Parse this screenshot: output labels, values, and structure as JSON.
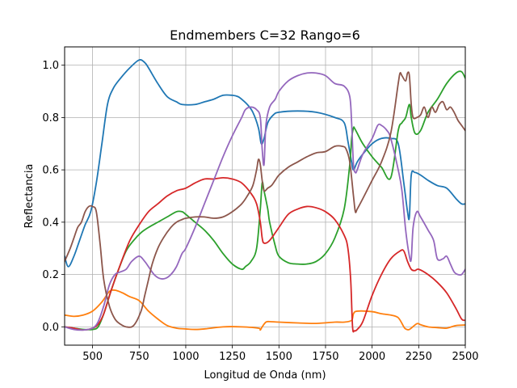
{
  "chart_data": {
    "type": "line",
    "title": "Endmembers C=32 Rango=6",
    "xlabel": "Longitud de Onda (nm)",
    "ylabel": "Reflectancia",
    "xlim": [
      350,
      2500
    ],
    "ylim": [
      -0.07,
      1.07
    ],
    "xticks": [
      500,
      750,
      1000,
      1250,
      1500,
      1750,
      2000,
      2250,
      2500
    ],
    "yticks": [
      0.0,
      0.2,
      0.4,
      0.6,
      0.8,
      1.0
    ],
    "xtick_labels": [
      "500",
      "750",
      "1000",
      "1250",
      "1500",
      "1750",
      "2000",
      "2250",
      "2500"
    ],
    "ytick_labels": [
      "0.0",
      "0.2",
      "0.4",
      "0.6",
      "0.8",
      "1.0"
    ],
    "grid": true,
    "series": [
      {
        "color": "#1f77b4",
        "x": [
          350,
          370,
          400,
          430,
          460,
          490,
          520,
          550,
          580,
          610,
          650,
          700,
          750,
          780,
          800,
          850,
          900,
          950,
          980,
          1050,
          1100,
          1150,
          1200,
          1250,
          1280,
          1300,
          1330,
          1360,
          1390,
          1405,
          1420,
          1440,
          1470,
          1500,
          1600,
          1700,
          1800,
          1850,
          1870,
          1890,
          1900,
          1920,
          1950,
          2000,
          2050,
          2100,
          2140,
          2170,
          2190,
          2200,
          2210,
          2230,
          2260,
          2300,
          2350,
          2400,
          2450,
          2480,
          2500
        ],
        "y": [
          0.27,
          0.23,
          0.27,
          0.33,
          0.39,
          0.44,
          0.55,
          0.7,
          0.85,
          0.91,
          0.95,
          0.99,
          1.02,
          1.01,
          0.99,
          0.93,
          0.88,
          0.86,
          0.85,
          0.85,
          0.86,
          0.87,
          0.885,
          0.885,
          0.88,
          0.87,
          0.85,
          0.82,
          0.76,
          0.7,
          0.72,
          0.78,
          0.81,
          0.82,
          0.825,
          0.82,
          0.8,
          0.78,
          0.71,
          0.63,
          0.6,
          0.63,
          0.66,
          0.7,
          0.72,
          0.72,
          0.7,
          0.55,
          0.44,
          0.42,
          0.58,
          0.59,
          0.58,
          0.56,
          0.54,
          0.53,
          0.49,
          0.47,
          0.47
        ]
      },
      {
        "color": "#ff7f0e",
        "x": [
          350,
          400,
          450,
          500,
          550,
          590,
          620,
          660,
          700,
          750,
          800,
          850,
          900,
          950,
          1000,
          1050,
          1100,
          1200,
          1300,
          1390,
          1400,
          1410,
          1430,
          1450,
          1500,
          1600,
          1700,
          1800,
          1850,
          1890,
          1900,
          1920,
          2000,
          2050,
          2100,
          2140,
          2170,
          2180,
          2200,
          2240,
          2260,
          2300,
          2350,
          2400,
          2450,
          2500
        ],
        "y": [
          0.045,
          0.04,
          0.045,
          0.06,
          0.095,
          0.135,
          0.14,
          0.13,
          0.115,
          0.1,
          0.06,
          0.03,
          0.005,
          -0.005,
          -0.008,
          -0.01,
          -0.008,
          0.0,
          0.0,
          -0.005,
          -0.012,
          0.0,
          0.018,
          0.02,
          0.018,
          0.015,
          0.013,
          0.018,
          0.018,
          0.025,
          0.05,
          0.06,
          0.058,
          0.05,
          0.045,
          0.035,
          0.0,
          -0.008,
          -0.01,
          0.012,
          0.008,
          0.0,
          -0.003,
          -0.005,
          0.005,
          0.007
        ]
      },
      {
        "color": "#2ca02c",
        "x": [
          350,
          400,
          450,
          500,
          530,
          560,
          600,
          640,
          680,
          720,
          760,
          800,
          850,
          900,
          950,
          980,
          1000,
          1050,
          1100,
          1150,
          1200,
          1250,
          1300,
          1320,
          1350,
          1380,
          1400,
          1410,
          1420,
          1440,
          1450,
          1480,
          1500,
          1550,
          1600,
          1650,
          1700,
          1750,
          1800,
          1850,
          1880,
          1890,
          1900,
          1905,
          1920,
          1950,
          2000,
          2050,
          2100,
          2140,
          2160,
          2180,
          2200,
          2210,
          2230,
          2260,
          2300,
          2350,
          2400,
          2450,
          2480,
          2500
        ],
        "y": [
          0.0,
          -0.005,
          -0.01,
          -0.01,
          0.0,
          0.05,
          0.14,
          0.22,
          0.29,
          0.33,
          0.36,
          0.38,
          0.4,
          0.42,
          0.44,
          0.44,
          0.43,
          0.4,
          0.37,
          0.33,
          0.28,
          0.24,
          0.22,
          0.23,
          0.25,
          0.3,
          0.45,
          0.55,
          0.52,
          0.45,
          0.4,
          0.31,
          0.27,
          0.245,
          0.24,
          0.24,
          0.25,
          0.28,
          0.34,
          0.45,
          0.62,
          0.72,
          0.76,
          0.76,
          0.74,
          0.7,
          0.65,
          0.61,
          0.57,
          0.75,
          0.78,
          0.8,
          0.85,
          0.8,
          0.74,
          0.75,
          0.82,
          0.87,
          0.93,
          0.97,
          0.975,
          0.95
        ]
      },
      {
        "color": "#d62728",
        "x": [
          350,
          400,
          450,
          500,
          530,
          560,
          600,
          650,
          700,
          750,
          800,
          850,
          900,
          950,
          1000,
          1050,
          1100,
          1150,
          1200,
          1250,
          1300,
          1350,
          1380,
          1400,
          1410,
          1420,
          1450,
          1500,
          1550,
          1600,
          1650,
          1700,
          1750,
          1800,
          1850,
          1870,
          1885,
          1895,
          1905,
          1920,
          1950,
          2000,
          2050,
          2100,
          2150,
          2170,
          2190,
          2210,
          2230,
          2250,
          2300,
          2350,
          2400,
          2450,
          2480,
          2500
        ],
        "y": [
          0.0,
          -0.005,
          -0.012,
          -0.005,
          0.01,
          0.05,
          0.14,
          0.24,
          0.33,
          0.39,
          0.44,
          0.47,
          0.5,
          0.52,
          0.53,
          0.55,
          0.565,
          0.565,
          0.57,
          0.565,
          0.55,
          0.51,
          0.47,
          0.4,
          0.34,
          0.32,
          0.33,
          0.38,
          0.43,
          0.45,
          0.46,
          0.455,
          0.44,
          0.41,
          0.35,
          0.3,
          0.18,
          0.0,
          -0.015,
          -0.01,
          0.02,
          0.12,
          0.2,
          0.26,
          0.29,
          0.29,
          0.25,
          0.22,
          0.215,
          0.22,
          0.2,
          0.17,
          0.13,
          0.07,
          0.03,
          0.025
        ]
      },
      {
        "color": "#9467bd",
        "x": [
          350,
          400,
          450,
          500,
          530,
          560,
          590,
          620,
          650,
          680,
          710,
          750,
          780,
          800,
          830,
          860,
          890,
          920,
          950,
          980,
          1000,
          1050,
          1100,
          1150,
          1200,
          1250,
          1300,
          1320,
          1350,
          1380,
          1400,
          1410,
          1420,
          1430,
          1450,
          1480,
          1500,
          1550,
          1600,
          1650,
          1700,
          1750,
          1800,
          1850,
          1880,
          1890,
          1900,
          1910,
          1920,
          1950,
          2000,
          2030,
          2050,
          2080,
          2100,
          2140,
          2160,
          2180,
          2200,
          2210,
          2220,
          2240,
          2260,
          2300,
          2330,
          2350,
          2380,
          2400,
          2420,
          2440,
          2460,
          2480,
          2500
        ],
        "y": [
          0.0,
          -0.01,
          -0.012,
          -0.005,
          0.02,
          0.08,
          0.16,
          0.2,
          0.21,
          0.22,
          0.25,
          0.27,
          0.25,
          0.23,
          0.2,
          0.185,
          0.185,
          0.2,
          0.23,
          0.28,
          0.3,
          0.38,
          0.47,
          0.56,
          0.65,
          0.73,
          0.8,
          0.83,
          0.84,
          0.83,
          0.8,
          0.68,
          0.62,
          0.77,
          0.84,
          0.87,
          0.9,
          0.94,
          0.96,
          0.97,
          0.97,
          0.96,
          0.93,
          0.92,
          0.88,
          0.78,
          0.62,
          0.59,
          0.6,
          0.66,
          0.72,
          0.77,
          0.77,
          0.75,
          0.72,
          0.6,
          0.52,
          0.37,
          0.27,
          0.26,
          0.38,
          0.44,
          0.42,
          0.37,
          0.33,
          0.26,
          0.26,
          0.27,
          0.24,
          0.21,
          0.2,
          0.2,
          0.22
        ]
      },
      {
        "color": "#8c564b",
        "x": [
          350,
          380,
          400,
          420,
          440,
          460,
          480,
          500,
          520,
          540,
          560,
          590,
          620,
          650,
          680,
          720,
          760,
          780,
          800,
          820,
          850,
          880,
          920,
          950,
          980,
          1000,
          1050,
          1100,
          1150,
          1200,
          1250,
          1300,
          1330,
          1360,
          1380,
          1390,
          1400,
          1410,
          1420,
          1440,
          1460,
          1480,
          1500,
          1550,
          1600,
          1650,
          1700,
          1750,
          1800,
          1840,
          1860,
          1880,
          1900,
          1910,
          1920,
          1950,
          2000,
          2050,
          2100,
          2140,
          2150,
          2160,
          2180,
          2190,
          2200,
          2210,
          2220,
          2240,
          2260,
          2280,
          2300,
          2320,
          2340,
          2360,
          2380,
          2400,
          2420,
          2440,
          2460,
          2480,
          2500
        ],
        "y": [
          0.25,
          0.3,
          0.34,
          0.38,
          0.4,
          0.44,
          0.46,
          0.46,
          0.44,
          0.32,
          0.18,
          0.08,
          0.03,
          0.01,
          0.0,
          0.005,
          0.06,
          0.12,
          0.18,
          0.24,
          0.3,
          0.34,
          0.38,
          0.4,
          0.41,
          0.415,
          0.42,
          0.42,
          0.415,
          0.42,
          0.44,
          0.47,
          0.5,
          0.54,
          0.6,
          0.64,
          0.62,
          0.56,
          0.52,
          0.53,
          0.54,
          0.56,
          0.58,
          0.61,
          0.63,
          0.65,
          0.665,
          0.67,
          0.69,
          0.69,
          0.68,
          0.63,
          0.5,
          0.44,
          0.45,
          0.49,
          0.56,
          0.63,
          0.74,
          0.93,
          0.97,
          0.96,
          0.94,
          0.97,
          0.96,
          0.85,
          0.8,
          0.8,
          0.81,
          0.84,
          0.8,
          0.84,
          0.82,
          0.85,
          0.86,
          0.83,
          0.84,
          0.82,
          0.79,
          0.77,
          0.75
        ]
      }
    ]
  }
}
